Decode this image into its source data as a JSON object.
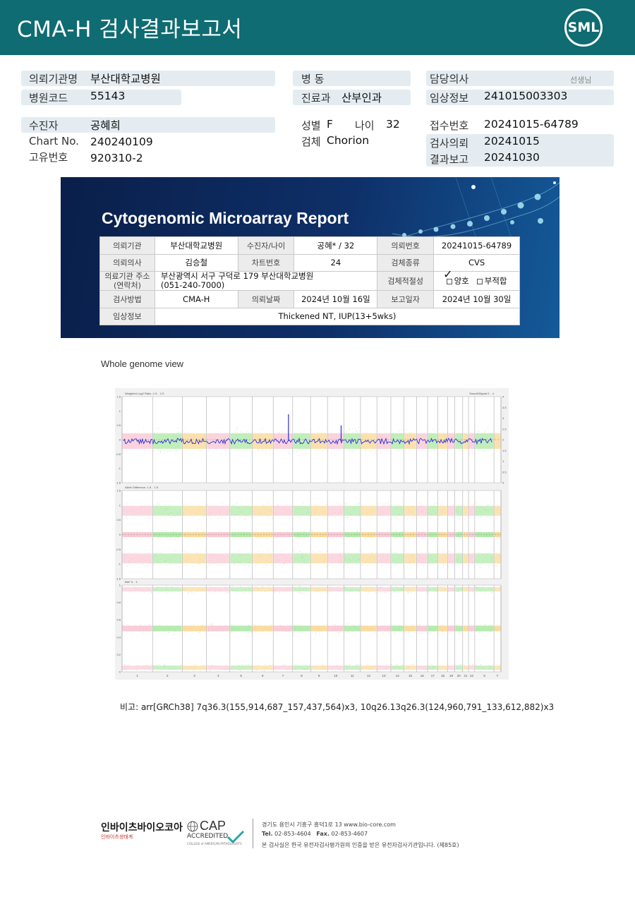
{
  "header": {
    "title": "CMA-H 검사결과보고서",
    "logo_text": "SML",
    "logo_icon": "sml-logo"
  },
  "info": {
    "requesting_institution_label": "의뢰기관명",
    "requesting_institution": "부산대학교병원",
    "hospital_code_label": "병원코드",
    "hospital_code": "55143",
    "ward_label": "병   동",
    "ward": "",
    "department_label": "진료과",
    "department": "산부인과",
    "physician_label": "담당의사",
    "physician": "",
    "physician_suffix": "선생님",
    "clinical_info_label": "임상정보",
    "clinical_info": "241015003303",
    "patient_label": "수진자",
    "patient": "공혜희",
    "chart_no_label": "Chart No.",
    "chart_no": "240240109",
    "unique_no_label": "고유번호",
    "unique_no": "920310-2",
    "sex_label": "성별",
    "sex": "F",
    "age_label": "나이",
    "age": "32",
    "specimen_label": "검체",
    "specimen": "Chorion",
    "receipt_no_label": "접수번호",
    "receipt_no": "20241015-64789",
    "test_request_label": "검사의뢰",
    "test_request": "20241015",
    "result_report_label": "결과보고",
    "result_report": "20241030"
  },
  "report": {
    "title": "Cytogenomic Microarray Report",
    "rows": {
      "r1": {
        "k1": "의뢰기관",
        "v1": "부산대학교병원",
        "k2": "수진자/나이",
        "v2": "공혜* / 32",
        "k3": "의뢰번호",
        "v3": "20241015-64789"
      },
      "r2": {
        "k1": "의뢰의사",
        "v1": "김승철",
        "k2": "차트번호",
        "v2": "24",
        "k3": "검체종류",
        "v3": "CVS"
      },
      "r3": {
        "k1a": "의료기관 주소",
        "k1b": "(연락처)",
        "v1a": "부산광역시 서구 구덕로 179 부산대학교병원",
        "v1b": "(051-240-7000)",
        "k3": "검체적절성",
        "opt_ok": "양호",
        "opt_bad": "부적합",
        "check_mark": "✓"
      },
      "r4": {
        "k1": "검사방법",
        "v1": "CMA-H",
        "k2": "의뢰날짜",
        "v2": "2024년 10월 16일",
        "k3": "보고일자",
        "v3": "2024년 10월 30일"
      },
      "r5": {
        "k1": "임상정보",
        "v1": "Thickened NT, IUP(13+5wks)"
      }
    }
  },
  "genome": {
    "label": "Whole genome view",
    "panel1_title": "Weighted Log2 Ratio  -1.5 .. 1.5",
    "panel1_right": "SmoothSignal 0 .. 4",
    "panel2_title": "Allele Difference  -1.5 .. 1.5",
    "panel3_title": "BAF 0 .. 1",
    "panel1_ticks": [
      "1.5",
      "1",
      "0.5",
      "0",
      "-0.5",
      "-1",
      "-1.5"
    ],
    "panel1_right_ticks": [
      "4",
      "3.5",
      "3",
      "2.5",
      "2",
      "1.5",
      "1",
      "0.5",
      "0"
    ],
    "panel2_ticks": [
      "1.5",
      "1",
      "0.5",
      "0",
      "-0.5",
      "-1",
      "-1.5"
    ],
    "panel3_ticks": [
      "1",
      "0.8",
      "0.6",
      "0.4",
      "0.2",
      "0"
    ],
    "chromosomes": [
      "1",
      "2",
      "3",
      "4",
      "5",
      "6",
      "7",
      "8",
      "9",
      "10",
      "11",
      "12",
      "13",
      "14",
      "15",
      "16",
      "17",
      "18",
      "19",
      "20",
      "21",
      "22",
      "X",
      "Y"
    ],
    "colors": {
      "pink": "#f7b8c6",
      "green": "#99e28e",
      "orange": "#f6cd78",
      "blue": "#2b2bd8"
    }
  },
  "remark": {
    "label": "비고:",
    "text": "arr[GRCh38] 7q36.3(155,914,687_157,437,564)x3, 10q26.13q26.3(124,960,791_133,612,882)x3"
  },
  "footer": {
    "company": "인바이츠바이오코아",
    "company_sub": "인바이츠생태계",
    "cap_big": "CAP",
    "cap_accredited": "ACCREDITED",
    "cap_college": "COLLEGE of AMERICAN PATHOLOGISTS",
    "address": "경기도 용인시 기흥구 흥덕1로 13    www.bio-core.com",
    "tel_label": "Tel.",
    "tel": "02-853-4604",
    "fax_label": "Fax.",
    "fax": "02-853-4607",
    "cert": "본 검사실은 한국 유전자검사평가원의 인증을 받은 유전자검사기관입니다. (제85호)"
  }
}
